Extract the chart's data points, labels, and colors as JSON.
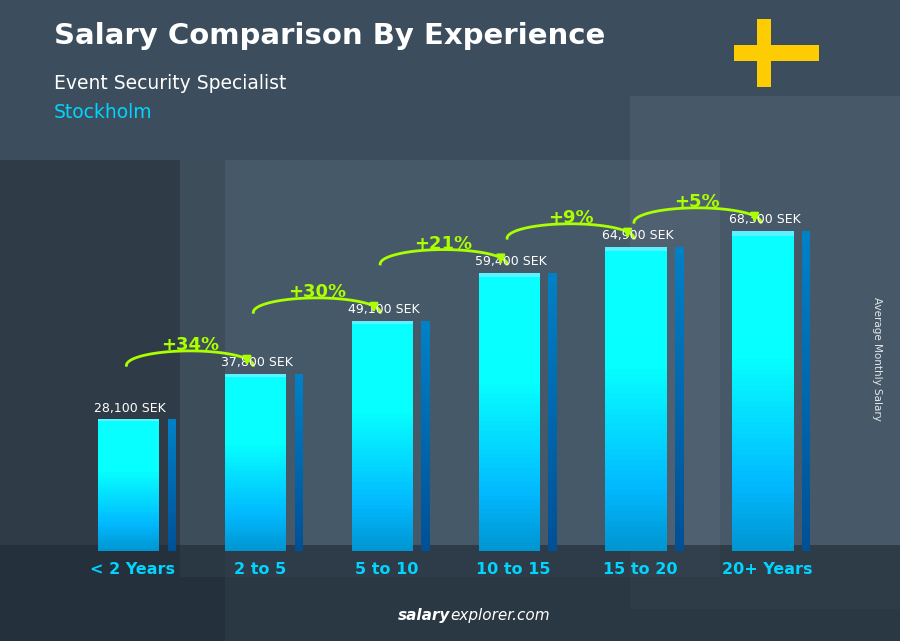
{
  "title": "Salary Comparison By Experience",
  "subtitle": "Event Security Specialist",
  "city": "Stockholm",
  "categories": [
    "< 2 Years",
    "2 to 5",
    "5 to 10",
    "10 to 15",
    "15 to 20",
    "20+ Years"
  ],
  "values": [
    28100,
    37800,
    49100,
    59400,
    64900,
    68300
  ],
  "labels": [
    "28,100 SEK",
    "37,800 SEK",
    "49,100 SEK",
    "59,400 SEK",
    "64,900 SEK",
    "68,300 SEK"
  ],
  "pct_changes": [
    null,
    "+34%",
    "+30%",
    "+21%",
    "+9%",
    "+5%"
  ],
  "bar_color_face": "#00b8e6",
  "bar_color_dark": "#005f99",
  "bar_highlight": "#40ddff",
  "bg_color": "#3a4a5a",
  "title_color": "#ffffff",
  "subtitle_color": "#ffffff",
  "city_color": "#00d4ff",
  "label_color": "#ffffff",
  "pct_color": "#aaff00",
  "arrow_color": "#aaff00",
  "xlabel_color": "#00d4ff",
  "footer_salary_color": "#ffffff",
  "footer_explorer_color": "#ffffff",
  "ylabel_text": "Average Monthly Salary",
  "bar_width": 0.55,
  "ylim_max": 82000,
  "flag_blue": "#006AA7",
  "flag_yellow": "#FECC02"
}
